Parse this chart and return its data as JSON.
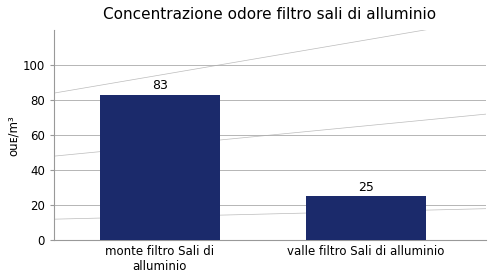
{
  "title": "Concentrazione odore filtro sali di alluminio",
  "categories": [
    "monte filtro Sali di\nalluminio",
    "valle filtro Sali di alluminio"
  ],
  "values": [
    83,
    25
  ],
  "bar_color": "#1B2A6B",
  "ylabel": "ouᴇ/m³",
  "ylim": [
    0,
    120
  ],
  "yticks": [
    0,
    20,
    40,
    60,
    80,
    100
  ],
  "bar_width": 0.25,
  "title_fontsize": 11,
  "label_fontsize": 8.5,
  "tick_fontsize": 8.5,
  "value_label_fontsize": 9,
  "background_color": "#ffffff",
  "x_positions": [
    0.22,
    0.65
  ]
}
